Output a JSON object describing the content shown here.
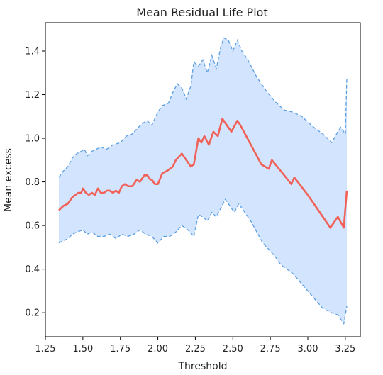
{
  "chart_data": {
    "type": "line",
    "title": "Mean Residual Life Plot",
    "xlabel": "Threshold",
    "ylabel": "Mean excess",
    "xlim": [
      1.25,
      3.35
    ],
    "ylim": [
      0.09,
      1.53
    ],
    "xticks": [
      "1.25",
      "1.50",
      "1.75",
      "2.00",
      "2.25",
      "2.50",
      "2.75",
      "3.00",
      "3.25"
    ],
    "yticks": [
      "0.2",
      "0.4",
      "0.6",
      "0.8",
      "1.0",
      "1.2",
      "1.4"
    ],
    "grid": false,
    "legend": "none",
    "colors": {
      "mean": "#f06158",
      "band_fill": "#d3e4ff",
      "band_edge": "#5b9fe3"
    },
    "series": [
      {
        "role": "mean",
        "x": [
          1.34,
          1.37,
          1.4,
          1.43,
          1.45,
          1.47,
          1.49,
          1.5,
          1.52,
          1.54,
          1.56,
          1.58,
          1.6,
          1.62,
          1.64,
          1.66,
          1.68,
          1.7,
          1.72,
          1.74,
          1.76,
          1.78,
          1.8,
          1.83,
          1.86,
          1.88,
          1.89,
          1.91,
          1.93,
          1.95,
          1.96,
          1.98,
          2.0,
          2.03,
          2.06,
          2.1,
          2.12,
          2.16,
          2.19,
          2.22,
          2.24,
          2.27,
          2.29,
          2.31,
          2.34,
          2.37,
          2.4,
          2.43,
          2.46,
          2.49,
          2.53,
          2.55,
          2.62,
          2.69,
          2.74,
          2.76,
          2.82,
          2.89,
          2.91,
          3.0,
          3.08,
          3.15,
          3.18,
          3.2,
          3.24,
          3.26
        ],
        "y": [
          0.67,
          0.69,
          0.7,
          0.73,
          0.74,
          0.75,
          0.75,
          0.77,
          0.75,
          0.74,
          0.75,
          0.74,
          0.77,
          0.75,
          0.75,
          0.76,
          0.76,
          0.75,
          0.76,
          0.75,
          0.78,
          0.79,
          0.78,
          0.78,
          0.81,
          0.8,
          0.81,
          0.83,
          0.83,
          0.81,
          0.81,
          0.79,
          0.79,
          0.84,
          0.85,
          0.87,
          0.9,
          0.93,
          0.9,
          0.87,
          0.88,
          1.0,
          0.98,
          1.01,
          0.97,
          1.03,
          1.01,
          1.09,
          1.06,
          1.03,
          1.08,
          1.06,
          0.97,
          0.88,
          0.86,
          0.9,
          0.85,
          0.79,
          0.82,
          0.74,
          0.66,
          0.59,
          0.62,
          0.64,
          0.59,
          0.76
        ]
      },
      {
        "role": "upper",
        "x": [
          1.34,
          1.37,
          1.4,
          1.43,
          1.46,
          1.49,
          1.51,
          1.53,
          1.56,
          1.59,
          1.62,
          1.66,
          1.7,
          1.75,
          1.79,
          1.83,
          1.87,
          1.9,
          1.93,
          1.96,
          2.0,
          2.03,
          2.07,
          2.1,
          2.13,
          2.16,
          2.19,
          2.22,
          2.24,
          2.27,
          2.3,
          2.33,
          2.36,
          2.39,
          2.42,
          2.44,
          2.47,
          2.5,
          2.53,
          2.56,
          2.6,
          2.66,
          2.72,
          2.78,
          2.84,
          2.9,
          2.96,
          3.04,
          3.1,
          3.16,
          3.2,
          3.22,
          3.25,
          3.26
        ],
        "y": [
          0.82,
          0.85,
          0.87,
          0.91,
          0.93,
          0.94,
          0.95,
          0.92,
          0.94,
          0.95,
          0.96,
          0.95,
          0.97,
          0.98,
          1.01,
          1.02,
          1.05,
          1.07,
          1.08,
          1.06,
          1.12,
          1.15,
          1.16,
          1.21,
          1.25,
          1.23,
          1.18,
          1.24,
          1.35,
          1.33,
          1.36,
          1.3,
          1.38,
          1.32,
          1.42,
          1.46,
          1.45,
          1.4,
          1.45,
          1.4,
          1.36,
          1.28,
          1.22,
          1.17,
          1.13,
          1.12,
          1.1,
          1.05,
          1.02,
          0.98,
          1.03,
          1.05,
          1.02,
          1.28
        ]
      },
      {
        "role": "lower",
        "x": [
          1.34,
          1.37,
          1.4,
          1.43,
          1.46,
          1.5,
          1.53,
          1.56,
          1.6,
          1.64,
          1.68,
          1.72,
          1.76,
          1.8,
          1.84,
          1.88,
          1.92,
          1.96,
          2.0,
          2.04,
          2.08,
          2.12,
          2.16,
          2.2,
          2.24,
          2.27,
          2.3,
          2.33,
          2.36,
          2.39,
          2.42,
          2.45,
          2.48,
          2.51,
          2.54,
          2.58,
          2.62,
          2.66,
          2.7,
          2.74,
          2.78,
          2.82,
          2.86,
          2.9,
          2.95,
          3.0,
          3.05,
          3.1,
          3.16,
          3.2,
          3.24,
          3.25,
          3.26
        ],
        "y": [
          0.52,
          0.53,
          0.54,
          0.56,
          0.57,
          0.58,
          0.56,
          0.57,
          0.55,
          0.55,
          0.56,
          0.54,
          0.56,
          0.55,
          0.56,
          0.58,
          0.56,
          0.55,
          0.52,
          0.55,
          0.55,
          0.57,
          0.6,
          0.58,
          0.55,
          0.65,
          0.64,
          0.62,
          0.66,
          0.64,
          0.68,
          0.72,
          0.69,
          0.66,
          0.7,
          0.66,
          0.62,
          0.57,
          0.52,
          0.49,
          0.46,
          0.42,
          0.4,
          0.38,
          0.34,
          0.3,
          0.26,
          0.22,
          0.2,
          0.19,
          0.15,
          0.19,
          0.23
        ]
      }
    ]
  }
}
